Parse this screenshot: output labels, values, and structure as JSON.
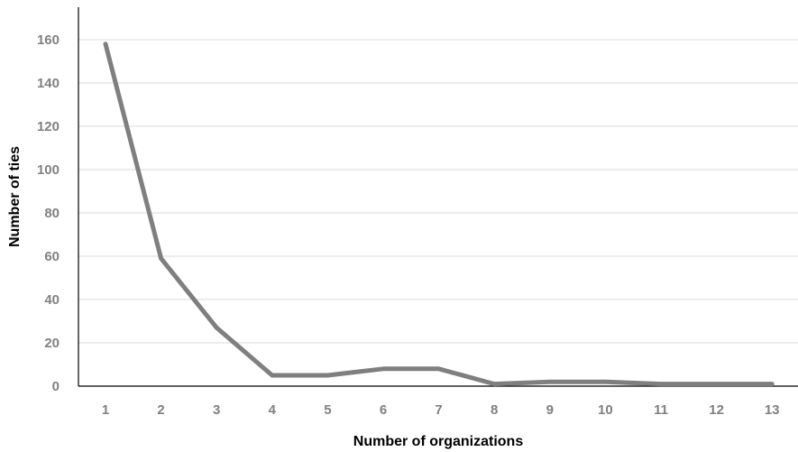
{
  "chart_data": {
    "type": "line",
    "title": "",
    "xlabel": "Number of organizations",
    "ylabel": "Number of ties",
    "x": [
      "1",
      "2",
      "3",
      "4",
      "5",
      "6",
      "7",
      "8",
      "9",
      "10",
      "11",
      "12",
      "13"
    ],
    "series": [
      {
        "values": [
          158,
          59,
          27,
          5,
          5,
          8,
          8,
          1,
          2,
          2,
          1,
          1,
          1
        ]
      }
    ],
    "ylim": [
      0,
      175
    ],
    "yticks": [
      0,
      20,
      40,
      60,
      80,
      100,
      120,
      140,
      160
    ],
    "grid": "horizontal",
    "legend": "none",
    "colors": {
      "line": "#7f7f7f",
      "grid": "#d9d9d9",
      "axis": "#000000",
      "tick_text": "#808080",
      "title_text": "#000000"
    }
  }
}
